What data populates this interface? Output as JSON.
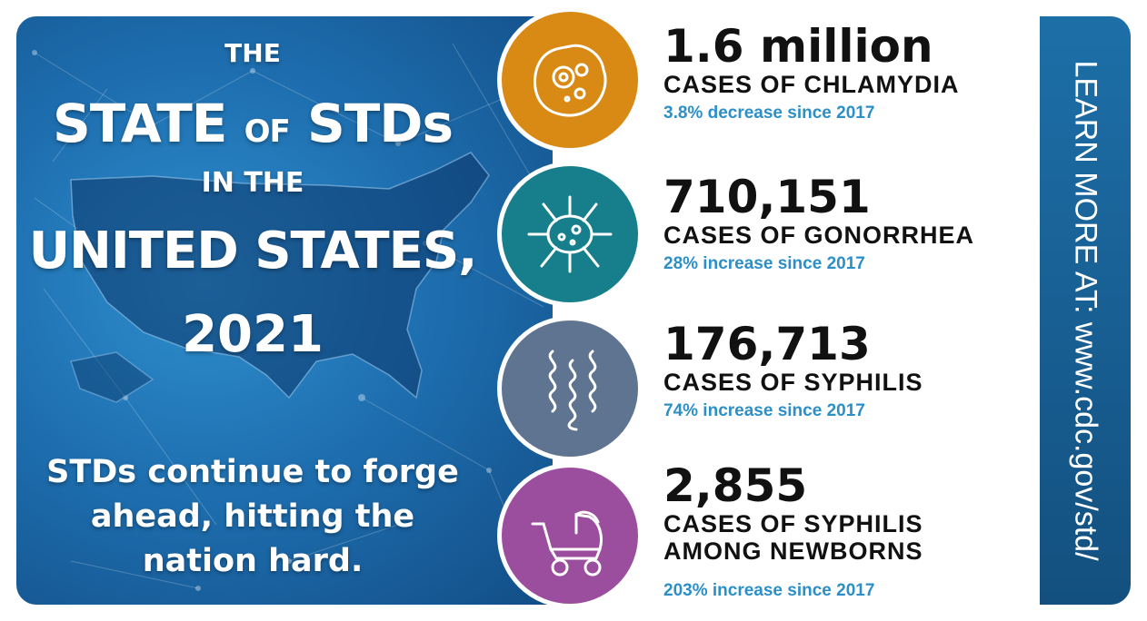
{
  "headline": {
    "line1": "THE",
    "state_pre": "STATE",
    "state_of": "OF",
    "state_post": "STDs",
    "line3": "IN THE",
    "line4": "UNITED STATES,",
    "line5": "2021"
  },
  "tagline": {
    "line1": "STDs continue to forge",
    "line2": "ahead, hitting the",
    "line3": "nation hard."
  },
  "stats": [
    {
      "number": "1.6 million",
      "label": "CASES OF CHLAMYDIA",
      "label2": "",
      "change": "3.8% decrease since 2017",
      "color": "#d98a14",
      "icon": "bacteria-cell-icon"
    },
    {
      "number": "710,151",
      "label": "CASES OF GONORRHEA",
      "label2": "",
      "change": "28% increase since 2017",
      "color": "#177f8c",
      "icon": "microbe-icon"
    },
    {
      "number": "176,713",
      "label": "CASES OF SYPHILIS",
      "label2": "",
      "change": "74% increase since 2017",
      "color": "#5e7491",
      "icon": "spirochete-icon"
    },
    {
      "number": "2,855",
      "label": "CASES OF SYPHILIS",
      "label2": "AMONG NEWBORNS",
      "change": "203% increase since 2017",
      "color": "#9b4d9e",
      "icon": "baby-stroller-icon"
    }
  ],
  "sidebar": {
    "text": "LEARN MORE AT:  www.cdc.gov/std/"
  },
  "colors": {
    "panel_blue": "#1e6fb0",
    "accent_text": "#2b8fc8"
  }
}
